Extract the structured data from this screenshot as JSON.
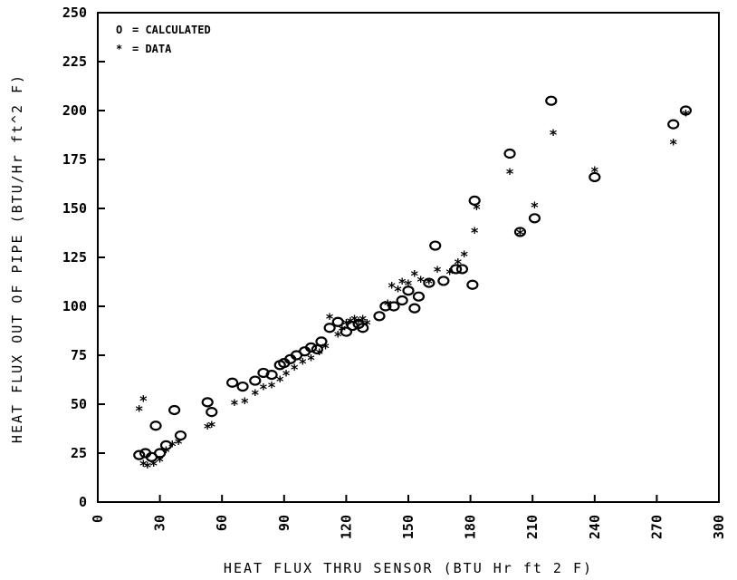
{
  "chart_data": {
    "type": "scatter",
    "title": "",
    "xlabel": "HEAT FLUX THRU SENSOR (BTU Hr ft 2 F)",
    "ylabel": "HEAT FLUX OUT OF PIPE (BTU/Hr ft^2 F)",
    "xlim": [
      0,
      300
    ],
    "ylim": [
      0,
      250
    ],
    "xticks": [
      "0",
      "30",
      "60",
      "90",
      "120",
      "150",
      "180",
      "210",
      "240",
      "270",
      "300"
    ],
    "yticks": [
      "0",
      "25",
      "50",
      "75",
      "100",
      "125",
      "150",
      "175",
      "200",
      "225",
      "250"
    ],
    "grid": false,
    "legend_position": "top-left",
    "legend": [
      {
        "marker": "O",
        "label": "= CALCULATED"
      },
      {
        "marker": "*",
        "label": "= DATA"
      }
    ],
    "series": [
      {
        "name": "CALCULATED",
        "marker": "O",
        "points": [
          [
            20,
            24
          ],
          [
            23,
            25
          ],
          [
            26,
            23
          ],
          [
            28,
            39
          ],
          [
            30,
            25
          ],
          [
            33,
            29
          ],
          [
            37,
            47
          ],
          [
            40,
            34
          ],
          [
            53,
            51
          ],
          [
            55,
            46
          ],
          [
            65,
            61
          ],
          [
            70,
            59
          ],
          [
            76,
            62
          ],
          [
            80,
            66
          ],
          [
            84,
            65
          ],
          [
            88,
            70
          ],
          [
            90,
            71
          ],
          [
            93,
            73
          ],
          [
            96,
            75
          ],
          [
            100,
            77
          ],
          [
            103,
            79
          ],
          [
            106,
            78
          ],
          [
            108,
            82
          ],
          [
            112,
            89
          ],
          [
            116,
            92
          ],
          [
            120,
            87
          ],
          [
            123,
            90
          ],
          [
            126,
            91
          ],
          [
            128,
            89
          ],
          [
            136,
            95
          ],
          [
            139,
            100
          ],
          [
            143,
            100
          ],
          [
            147,
            103
          ],
          [
            150,
            108
          ],
          [
            153,
            99
          ],
          [
            155,
            105
          ],
          [
            160,
            112
          ],
          [
            163,
            131
          ],
          [
            167,
            113
          ],
          [
            173,
            119
          ],
          [
            176,
            119
          ],
          [
            181,
            111
          ],
          [
            182,
            154
          ],
          [
            199,
            178
          ],
          [
            204,
            138
          ],
          [
            211,
            145
          ],
          [
            219,
            205
          ],
          [
            240,
            166
          ],
          [
            278,
            193
          ],
          [
            284,
            200
          ]
        ]
      },
      {
        "name": "DATA",
        "marker": "*",
        "points": [
          [
            20,
            47
          ],
          [
            22,
            52
          ],
          [
            22,
            19
          ],
          [
            24,
            18
          ],
          [
            27,
            19
          ],
          [
            30,
            21
          ],
          [
            33,
            26
          ],
          [
            36,
            29
          ],
          [
            39,
            30
          ],
          [
            53,
            38
          ],
          [
            55,
            39
          ],
          [
            66,
            50
          ],
          [
            71,
            51
          ],
          [
            76,
            55
          ],
          [
            80,
            58
          ],
          [
            84,
            59
          ],
          [
            88,
            62
          ],
          [
            91,
            65
          ],
          [
            95,
            68
          ],
          [
            99,
            71
          ],
          [
            103,
            73
          ],
          [
            107,
            76
          ],
          [
            110,
            79
          ],
          [
            112,
            94
          ],
          [
            116,
            85
          ],
          [
            118,
            88
          ],
          [
            120,
            91
          ],
          [
            122,
            92
          ],
          [
            124,
            93
          ],
          [
            126,
            92
          ],
          [
            128,
            93
          ],
          [
            130,
            91
          ],
          [
            140,
            101
          ],
          [
            142,
            110
          ],
          [
            145,
            108
          ],
          [
            147,
            112
          ],
          [
            150,
            111
          ],
          [
            153,
            116
          ],
          [
            156,
            113
          ],
          [
            160,
            112
          ],
          [
            164,
            118
          ],
          [
            170,
            117
          ],
          [
            174,
            122
          ],
          [
            177,
            126
          ],
          [
            182,
            138
          ],
          [
            183,
            150
          ],
          [
            199,
            168
          ],
          [
            204,
            137
          ],
          [
            211,
            151
          ],
          [
            220,
            188
          ],
          [
            240,
            169
          ],
          [
            278,
            183
          ],
          [
            284,
            198
          ]
        ]
      }
    ]
  }
}
